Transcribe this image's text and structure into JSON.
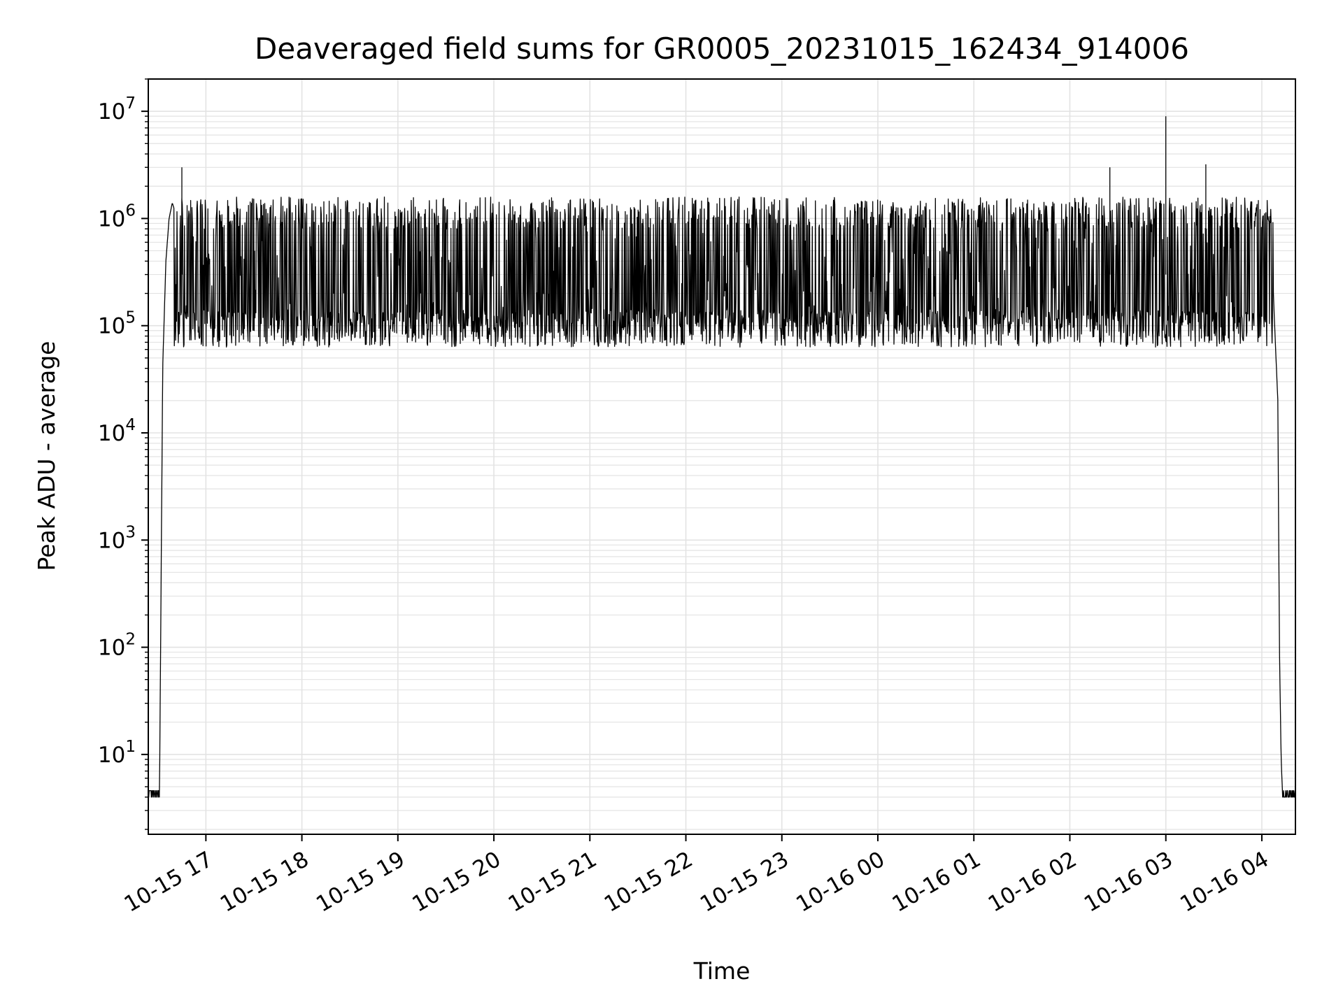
{
  "chart_data": {
    "type": "line",
    "title": "Deaveraged field sums for GR0005_20231015_162434_914006",
    "xlabel": "Time",
    "ylabel": "Peak ADU - average",
    "yscale": "log",
    "grid": true,
    "line_color": "#000000",
    "grid_color": "#e3e3e3",
    "xlim": [
      "2023-10-15 16:24",
      "2023-10-16 04:21"
    ],
    "ylim": [
      1.8,
      20000000
    ],
    "x_ticks": [
      "10-15 17",
      "10-15 18",
      "10-15 19",
      "10-15 20",
      "10-15 21",
      "10-15 22",
      "10-15 23",
      "10-16 00",
      "10-16 01",
      "10-16 02",
      "10-16 03",
      "10-16 04"
    ],
    "y_ticks": [
      {
        "base": "10",
        "exp": "1"
      },
      {
        "base": "10",
        "exp": "2"
      },
      {
        "base": "10",
        "exp": "3"
      },
      {
        "base": "10",
        "exp": "4"
      },
      {
        "base": "10",
        "exp": "5"
      },
      {
        "base": "10",
        "exp": "6"
      },
      {
        "base": "10",
        "exp": "7"
      }
    ],
    "series": [
      {
        "points": [
          [
            "2023-10-15 16:24",
            4
          ],
          [
            "2023-10-15 16:31",
            4
          ],
          [
            "2023-10-15 16:33",
            40000
          ],
          [
            "2023-10-15 16:35",
            400000
          ],
          [
            "2023-10-15 16:37",
            1000000
          ],
          [
            "2023-10-15 16:39",
            1400000
          ],
          [
            "2023-10-15 16:42",
            1000000
          ],
          [
            "2023-10-15 16:44",
            700000
          ],
          [
            "2023-10-15 16:45",
            3000000
          ],
          [
            "2023-10-15 16:46",
            350000
          ],
          [
            "2023-10-15 16:50",
            800000
          ],
          [
            "2023-10-15 16:55",
            120000
          ],
          [
            "2023-10-15 17:00",
            1300000
          ],
          [
            "2023-10-15 17:10",
            100000
          ],
          [
            "2023-10-15 17:20",
            1500000
          ],
          [
            "2023-10-15 17:30",
            90000
          ],
          [
            "2023-10-15 17:45",
            1400000
          ],
          [
            "2023-10-15 18:00",
            70000
          ],
          [
            "2023-10-15 18:20",
            1000000
          ],
          [
            "2023-10-15 18:40",
            60000
          ],
          [
            "2023-10-15 19:00",
            1500000
          ],
          [
            "2023-10-15 19:30",
            60000
          ],
          [
            "2023-10-15 20:00",
            1500000
          ],
          [
            "2023-10-15 20:30",
            60000
          ],
          [
            "2023-10-15 21:00",
            1300000
          ],
          [
            "2023-10-15 21:30",
            70000
          ],
          [
            "2023-10-15 22:00",
            700000
          ],
          [
            "2023-10-15 22:30",
            60000
          ],
          [
            "2023-10-15 23:00",
            900000
          ],
          [
            "2023-10-15 23:30",
            60000
          ],
          [
            "2023-10-16 00:00",
            1400000
          ],
          [
            "2023-10-16 00:30",
            60000
          ],
          [
            "2023-10-16 00:48",
            55000
          ],
          [
            "2023-10-16 01:00",
            600000
          ],
          [
            "2023-10-16 01:10",
            1600000
          ],
          [
            "2023-10-16 01:20",
            200000
          ],
          [
            "2023-10-16 01:40",
            1000000
          ],
          [
            "2023-10-16 02:00",
            400000
          ],
          [
            "2023-10-16 02:20",
            100000
          ],
          [
            "2023-10-16 02:25",
            3000000
          ],
          [
            "2023-10-16 02:40",
            300000
          ],
          [
            "2023-10-16 03:00",
            9000000
          ],
          [
            "2023-10-16 03:10",
            200000
          ],
          [
            "2023-10-16 03:25",
            3200000
          ],
          [
            "2023-10-16 03:40",
            800000
          ],
          [
            "2023-10-16 04:00",
            1800000
          ],
          [
            "2023-10-16 04:06",
            600000
          ],
          [
            "2023-10-16 04:08",
            100000
          ],
          [
            "2023-10-16 04:10",
            20000
          ],
          [
            "2023-10-16 04:11",
            100
          ],
          [
            "2023-10-16 04:12",
            10
          ],
          [
            "2023-10-16 04:13",
            4
          ],
          [
            "2023-10-16 04:21",
            4
          ]
        ]
      }
    ]
  }
}
